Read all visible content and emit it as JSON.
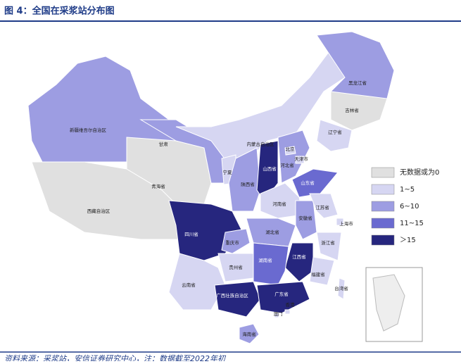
{
  "header": {
    "title": "图 4：全国在采浆站分布图"
  },
  "legend": [
    {
      "label": "无数据或为0",
      "color": "#e0e0e0"
    },
    {
      "label": "1~5",
      "color": "#d6d6f2"
    },
    {
      "label": "6~10",
      "color": "#9d9de2"
    },
    {
      "label": "11~15",
      "color": "#6a6ad0"
    },
    {
      "label": "＞15",
      "color": "#26267e"
    }
  ],
  "provinces": [
    {
      "name": "新疆维吾尔自治区",
      "color": "#9d9de2"
    },
    {
      "name": "西藏自治区",
      "color": "#e0e0e0"
    },
    {
      "name": "青海省",
      "color": "#e0e0e0"
    },
    {
      "name": "甘肃",
      "color": "#9d9de2"
    },
    {
      "name": "内蒙古自治区",
      "color": "#d6d6f2"
    },
    {
      "name": "黑龙江省",
      "color": "#9d9de2"
    },
    {
      "name": "吉林省",
      "color": "#e0e0e0"
    },
    {
      "name": "辽宁省",
      "color": "#d6d6f2"
    },
    {
      "name": "宁夏",
      "color": "#d6d6f2"
    },
    {
      "name": "陕西省",
      "color": "#9d9de2"
    },
    {
      "name": "山西省",
      "color": "#26267e"
    },
    {
      "name": "河北省",
      "color": "#9d9de2"
    },
    {
      "name": "山东省",
      "color": "#6a6ad0"
    },
    {
      "name": "河南省",
      "color": "#d6d6f2"
    },
    {
      "name": "四川省",
      "color": "#26267e"
    },
    {
      "name": "重庆市",
      "color": "#9d9de2"
    },
    {
      "name": "湖北省",
      "color": "#9d9de2"
    },
    {
      "name": "安徽省",
      "color": "#9d9de2"
    },
    {
      "name": "江苏省",
      "color": "#d6d6f2"
    },
    {
      "name": "上海市",
      "color": "#d6d6f2"
    },
    {
      "name": "浙江省",
      "color": "#d6d6f2"
    },
    {
      "name": "江西省",
      "color": "#26267e"
    },
    {
      "name": "湖南省",
      "color": "#6a6ad0"
    },
    {
      "name": "贵州省",
      "color": "#d6d6f2"
    },
    {
      "name": "云南省",
      "color": "#d6d6f2"
    },
    {
      "name": "广西壮族自治区",
      "color": "#26267e"
    },
    {
      "name": "广东省",
      "color": "#26267e"
    },
    {
      "name": "福建省",
      "color": "#d6d6f2"
    },
    {
      "name": "海南省",
      "color": "#9d9de2"
    },
    {
      "name": "台湾省",
      "color": "#d6d6f2"
    },
    {
      "name": "北京",
      "color": "#d6d6f2"
    },
    {
      "name": "天津市",
      "color": "#d6d6f2"
    },
    {
      "name": "香港",
      "color": "#d6d6f2"
    },
    {
      "name": "澳门",
      "color": "#d6d6f2"
    }
  ],
  "footer": {
    "source": "资料来源：采浆站，安信证券研究中心，注：数据截至2022年初"
  }
}
